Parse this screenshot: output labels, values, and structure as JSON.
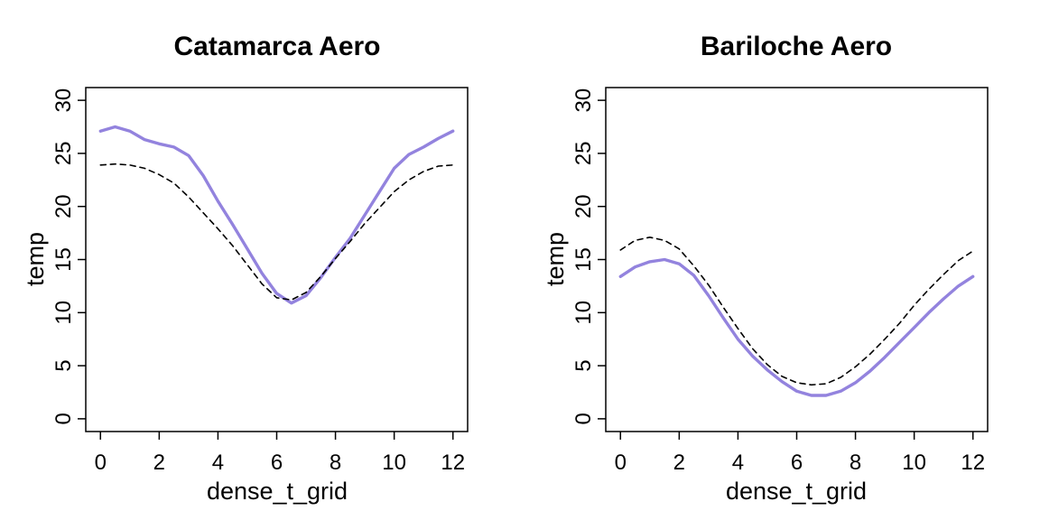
{
  "chart_data": [
    {
      "type": "line",
      "title": "Catamarca Aero",
      "xlabel": "dense_t_grid",
      "ylabel": "temp",
      "xlim": [
        -0.5,
        12.5
      ],
      "ylim": [
        -1.2,
        31.2
      ],
      "xticks": [
        "0",
        "2",
        "4",
        "6",
        "8",
        "10",
        "12"
      ],
      "yticks": [
        "0",
        "5",
        "10",
        "15",
        "20",
        "25",
        "30"
      ],
      "grid": false,
      "series": [
        {
          "style": "solid",
          "color": "#9383de",
          "x": [
            0,
            0.5,
            1,
            1.5,
            2,
            2.5,
            3,
            3.5,
            4,
            4.5,
            5,
            5.5,
            6,
            6.5,
            7,
            7.5,
            8,
            8.5,
            9,
            9.5,
            10,
            10.5,
            11,
            11.5,
            12
          ],
          "y": [
            27.1,
            27.5,
            27.1,
            26.3,
            25.9,
            25.6,
            24.8,
            22.9,
            20.5,
            18.3,
            16.0,
            13.7,
            11.8,
            10.9,
            11.6,
            13.3,
            15.2,
            17.0,
            19.2,
            21.4,
            23.6,
            24.9,
            25.6,
            26.4,
            27.1
          ]
        },
        {
          "style": "dashed",
          "color": "#000000",
          "x": [
            0,
            0.5,
            1,
            1.5,
            2,
            2.5,
            3,
            3.5,
            4,
            4.5,
            5,
            5.5,
            6,
            6.5,
            7,
            7.5,
            8,
            8.5,
            9,
            9.5,
            10,
            10.5,
            11,
            11.5,
            12
          ],
          "y": [
            23.9,
            24.0,
            23.9,
            23.6,
            23.0,
            22.2,
            20.9,
            19.4,
            17.9,
            16.3,
            14.5,
            12.7,
            11.4,
            11.2,
            11.9,
            13.4,
            15.1,
            16.7,
            18.4,
            19.9,
            21.4,
            22.5,
            23.3,
            23.8,
            23.9
          ]
        }
      ]
    },
    {
      "type": "line",
      "title": "Bariloche Aero",
      "xlabel": "dense_t_grid",
      "ylabel": "temp",
      "xlim": [
        -0.5,
        12.5
      ],
      "ylim": [
        -1.2,
        31.2
      ],
      "xticks": [
        "0",
        "2",
        "4",
        "6",
        "8",
        "10",
        "12"
      ],
      "yticks": [
        "0",
        "5",
        "10",
        "15",
        "20",
        "25",
        "30"
      ],
      "grid": false,
      "series": [
        {
          "style": "solid",
          "color": "#9383de",
          "x": [
            0,
            0.5,
            1,
            1.5,
            2,
            2.5,
            3,
            3.5,
            4,
            4.5,
            5,
            5.5,
            6,
            6.5,
            7,
            7.5,
            8,
            8.5,
            9,
            9.5,
            10,
            10.5,
            11,
            11.5,
            12
          ],
          "y": [
            13.4,
            14.3,
            14.8,
            15.0,
            14.6,
            13.5,
            11.6,
            9.5,
            7.5,
            5.9,
            4.6,
            3.5,
            2.6,
            2.2,
            2.2,
            2.6,
            3.4,
            4.5,
            5.8,
            7.2,
            8.6,
            10.0,
            11.3,
            12.5,
            13.4
          ]
        },
        {
          "style": "dashed",
          "color": "#000000",
          "x": [
            0,
            0.5,
            1,
            1.5,
            2,
            2.5,
            3,
            3.5,
            4,
            4.5,
            5,
            5.5,
            6,
            6.5,
            7,
            7.5,
            8,
            8.5,
            9,
            9.5,
            10,
            10.5,
            11,
            11.5,
            12
          ],
          "y": [
            15.9,
            16.8,
            17.1,
            16.8,
            16.0,
            14.4,
            12.6,
            10.5,
            8.5,
            6.6,
            5.1,
            4.0,
            3.4,
            3.2,
            3.3,
            3.9,
            4.9,
            6.1,
            7.5,
            9.0,
            10.7,
            12.2,
            13.6,
            14.9,
            15.8
          ]
        }
      ]
    }
  ]
}
